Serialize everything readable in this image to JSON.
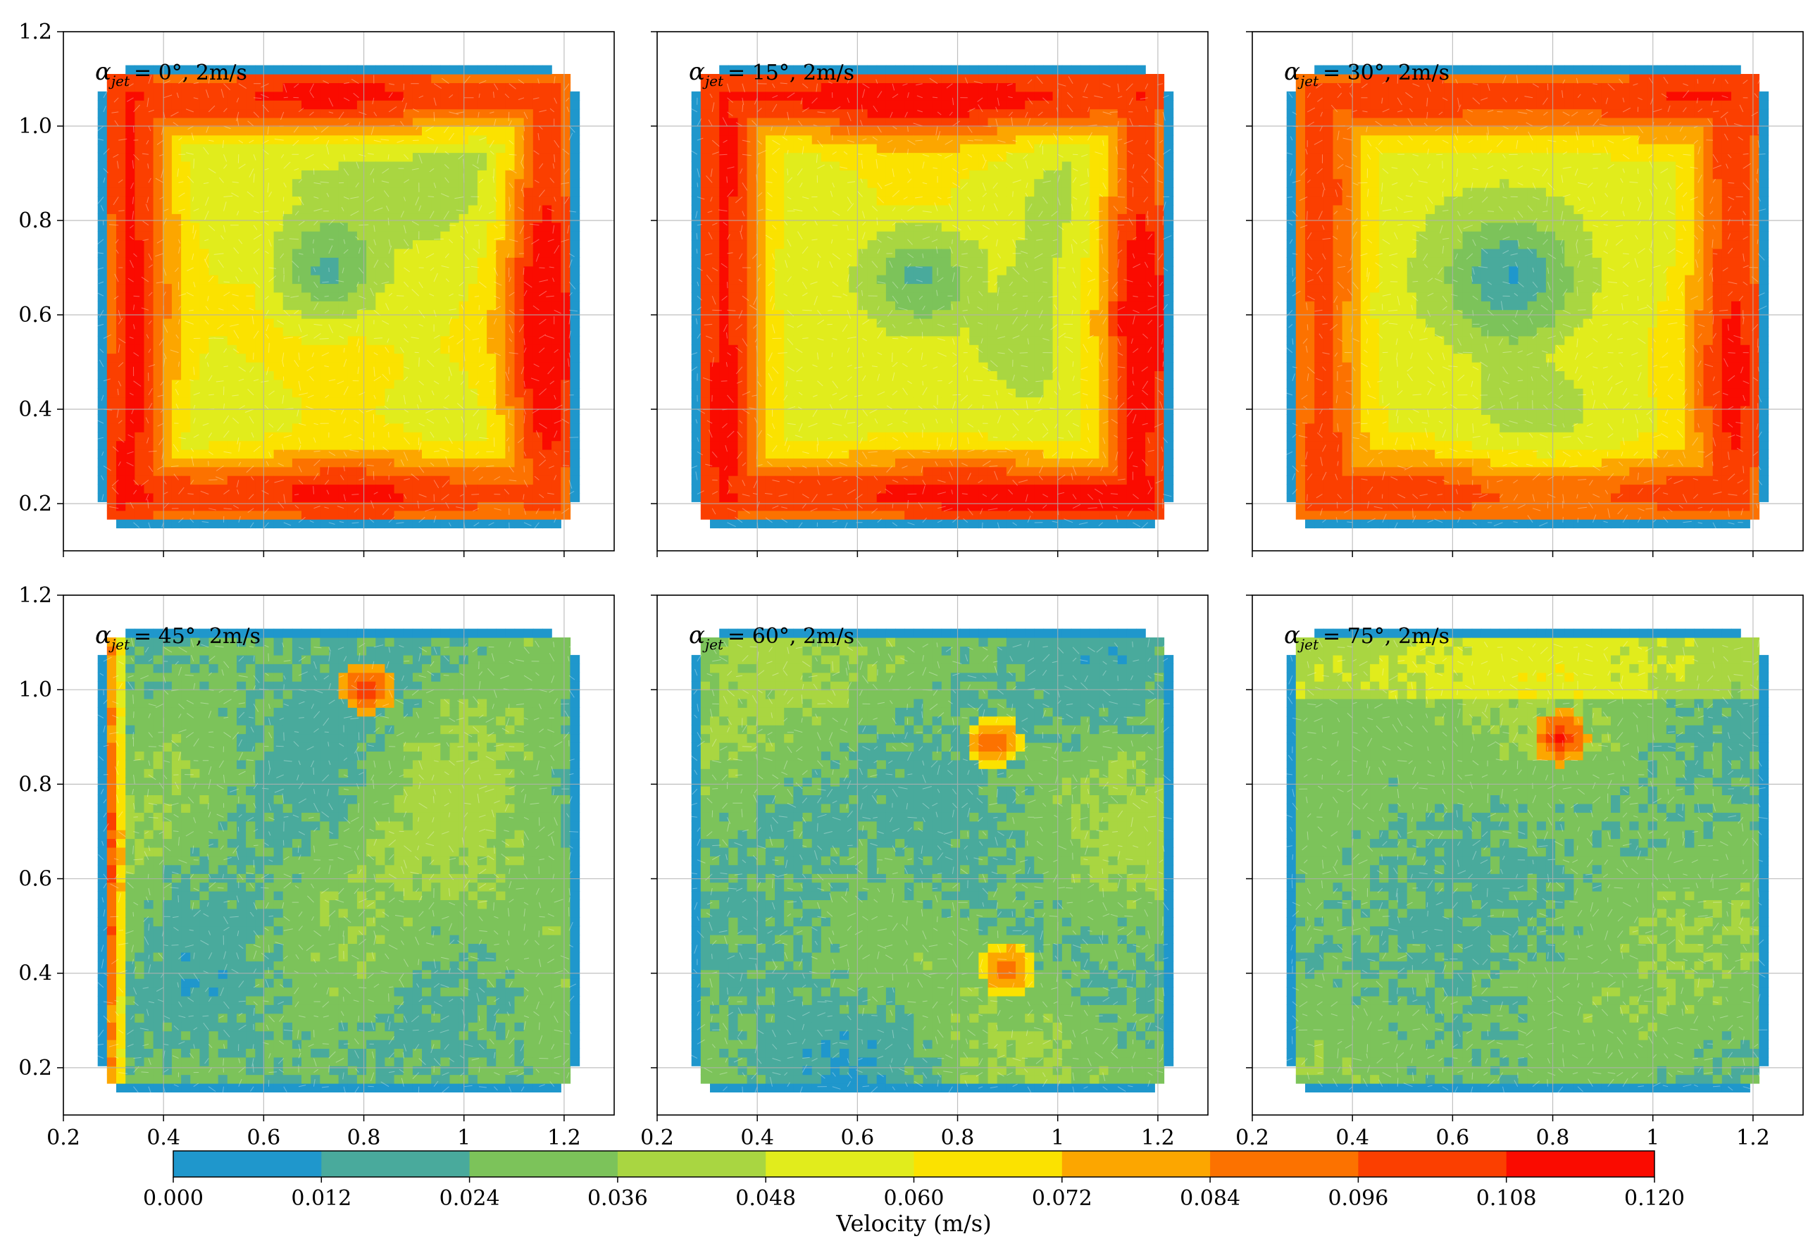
{
  "chart_data": {
    "type": "heatmap",
    "layout": "2x3 grid of panels, shared x and y axes",
    "xlim": [
      0.2,
      1.3
    ],
    "ylim": [
      0.1,
      1.2
    ],
    "x_ticks": [
      0.2,
      0.4,
      0.6,
      0.8,
      1,
      1.2
    ],
    "x_tick_labels": [
      "0.2",
      "0.4",
      "0.6",
      "0.8",
      "1",
      "1.2"
    ],
    "y_ticks": [
      0.2,
      0.4,
      0.6,
      0.8,
      1.0,
      1.2
    ],
    "y_tick_labels": [
      "0.2",
      "0.4",
      "0.6",
      "0.8",
      "1.0",
      "1.2"
    ],
    "grid": true,
    "panels": [
      {
        "alpha_deg": 0,
        "jet_speed": "2m/s",
        "label_symbol": "α",
        "label_sub": "jet",
        "label_text": "= 0°, 2m/s",
        "max_velocity": 0.11
      },
      {
        "alpha_deg": 15,
        "jet_speed": "2m/s",
        "label_symbol": "α",
        "label_sub": "jet",
        "label_text": "= 15°, 2m/s",
        "max_velocity": 0.11
      },
      {
        "alpha_deg": 30,
        "jet_speed": "2m/s",
        "label_symbol": "α",
        "label_sub": "jet",
        "label_text": "= 30°, 2m/s",
        "max_velocity": 0.1
      },
      {
        "alpha_deg": 45,
        "jet_speed": "2m/s",
        "label_symbol": "α",
        "label_sub": "jet",
        "label_text": "= 45°, 2m/s",
        "max_velocity": 0.11
      },
      {
        "alpha_deg": 60,
        "jet_speed": "2m/s",
        "label_symbol": "α",
        "label_sub": "jet",
        "label_text": "= 60°, 2m/s",
        "max_velocity": 0.1
      },
      {
        "alpha_deg": 75,
        "jet_speed": "2m/s",
        "label_symbol": "α",
        "label_sub": "jet",
        "label_text": "= 75°, 2m/s",
        "max_velocity": 0.11
      }
    ],
    "colorbar": {
      "title": "Velocity (m/s)",
      "boundaries": [
        0.0,
        0.012,
        0.024,
        0.036,
        0.048,
        0.06,
        0.072,
        0.084,
        0.096,
        0.108,
        0.12
      ],
      "tick_labels": [
        "0.000",
        "0.012",
        "0.024",
        "0.036",
        "0.048",
        "0.060",
        "0.072",
        "0.084",
        "0.096",
        "0.108",
        "0.120"
      ],
      "colors": [
        "#1f97cc",
        "#49aa9c",
        "#7cc35a",
        "#a9d641",
        "#e1ec1c",
        "#fbe200",
        "#fca600",
        "#fc7200",
        "#fb3f00",
        "#fa0b00"
      ],
      "orientation": "horizontal"
    }
  }
}
